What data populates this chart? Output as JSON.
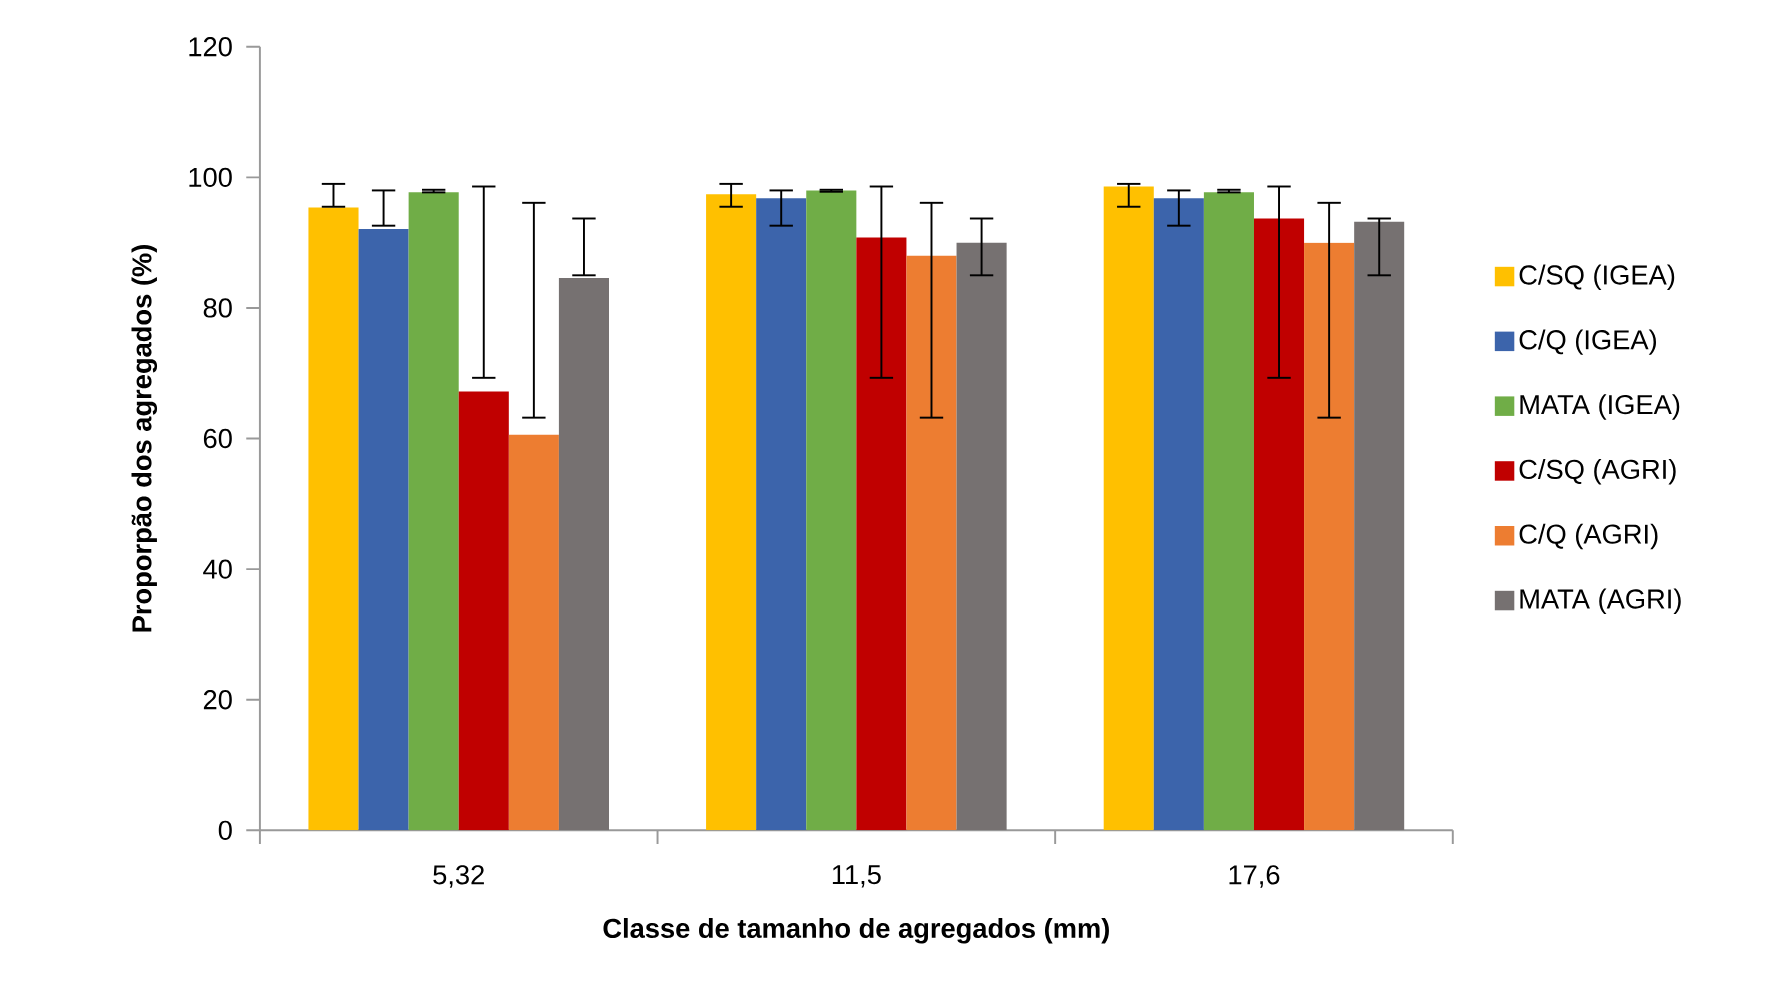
{
  "chart_data": {
    "type": "bar",
    "xlabel": "Classe de tamanho de agregados (mm)",
    "ylabel": "Proporpão dos agregados (%)",
    "categories": [
      "5,32",
      "11,5",
      "17,6"
    ],
    "ylim": [
      0,
      120
    ],
    "yticks": [
      0,
      20,
      40,
      60,
      80,
      100,
      120
    ],
    "grid": false,
    "legend": "right",
    "series": [
      {
        "name": "C/SQ (IGEA)",
        "color": "#ffc000",
        "values": [
          95.4,
          97.4,
          98.6
        ],
        "errors": [
          [
            95.5,
            99.0
          ],
          [
            95.5,
            99.0
          ],
          [
            95.5,
            99.0
          ]
        ]
      },
      {
        "name": "C/Q (IGEA)",
        "color": "#3c64ab",
        "values": [
          92.1,
          96.8,
          96.8
        ],
        "errors": [
          [
            92.6,
            98.0
          ],
          [
            92.6,
            98.0
          ],
          [
            92.6,
            98.0
          ]
        ]
      },
      {
        "name": "MATA (IGEA)",
        "color": "#70ad47",
        "values": [
          97.7,
          98.0,
          97.7
        ],
        "errors": [
          [
            97.7,
            98.1
          ],
          [
            97.8,
            98.1
          ],
          [
            97.7,
            98.1
          ]
        ]
      },
      {
        "name": "C/SQ (AGRI)",
        "color": "#c00000",
        "values": [
          67.2,
          90.8,
          93.7
        ],
        "errors": [
          [
            69.3,
            98.6
          ],
          [
            69.3,
            98.6
          ],
          [
            69.3,
            98.6
          ]
        ]
      },
      {
        "name": "C/Q (AGRI)",
        "color": "#ed7d31",
        "values": [
          60.6,
          88.0,
          90.0
        ],
        "errors": [
          [
            63.2,
            96.1
          ],
          [
            63.2,
            96.1
          ],
          [
            63.2,
            96.1
          ]
        ]
      },
      {
        "name": "MATA (AGRI)",
        "color": "#767171",
        "values": [
          84.6,
          90.0,
          93.2
        ],
        "errors": [
          [
            85.0,
            93.7
          ],
          [
            85.0,
            93.7
          ],
          [
            85.0,
            93.7
          ]
        ]
      }
    ]
  }
}
